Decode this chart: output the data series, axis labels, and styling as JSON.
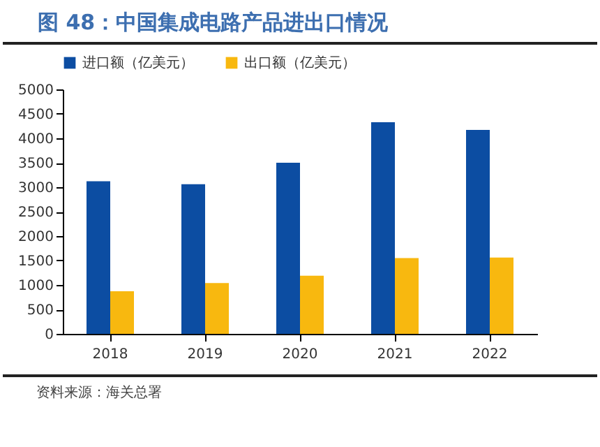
{
  "chart_data": {
    "type": "bar",
    "title": "图 48：中国集成电路产品进出口情况",
    "categories": [
      "2018",
      "2019",
      "2020",
      "2021",
      "2022"
    ],
    "series": [
      {
        "name": "进口额（亿美元）",
        "color": "#0c4da2",
        "values": [
          3120,
          3060,
          3500,
          4330,
          4170
        ]
      },
      {
        "name": "出口额（亿美元）",
        "color": "#f8b80f",
        "values": [
          870,
          1040,
          1190,
          1550,
          1560
        ]
      }
    ],
    "ylim": [
      0,
      5000
    ],
    "yticks": [
      0,
      500,
      1000,
      1500,
      2000,
      2500,
      3000,
      3500,
      4000,
      4500,
      5000
    ],
    "grid": false,
    "legend": "top",
    "annotations": [
      "资料来源：海关总署"
    ]
  }
}
